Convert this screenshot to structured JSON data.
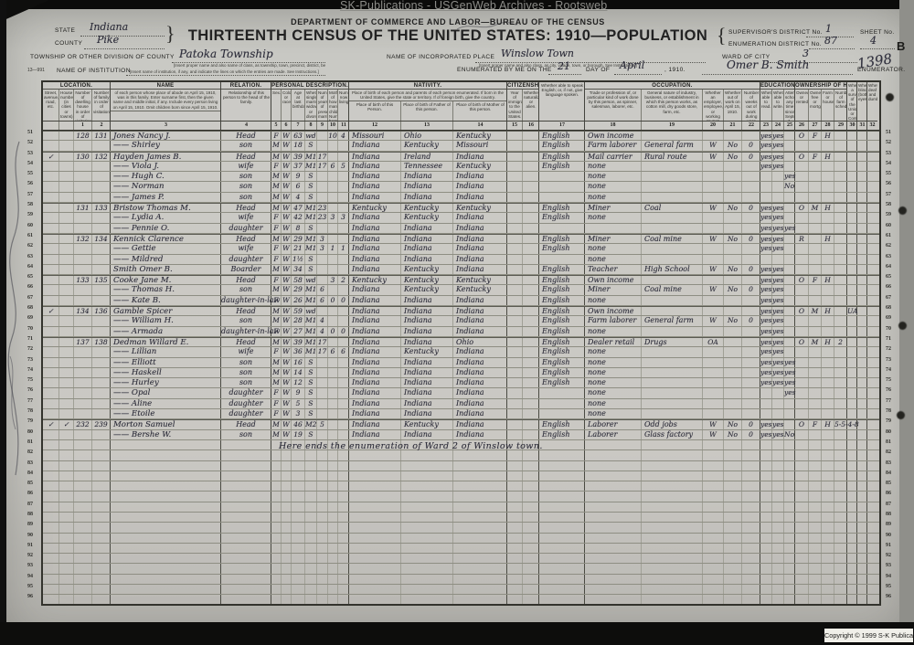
{
  "watermark": "SK-Publications - USGenWeb Archives - Rootsweb",
  "copyright": "Copyright © 1999 S-K Publications",
  "note_row": "Here ends the enumeration of Ward 2 of Winslow town.",
  "form": {
    "form_number": "13—991",
    "dept_line": "DEPARTMENT OF COMMERCE AND LABOR—BUREAU OF THE CENSUS",
    "title": "THIRTEENTH CENSUS OF THE UNITED STATES: 1910—POPULATION",
    "state_label": "STATE",
    "state_value": "Indiana",
    "county_label": "COUNTY",
    "county_value": "Pike",
    "township_label": "TOWNSHIP OR OTHER DIVISION OF COUNTY",
    "township_value": "Patoka Township",
    "township_note": "[Insert proper name and also name of class, as township, town, precinct, district, beat, election district, etc.  See Instructions.]",
    "institution_label": "NAME OF INSTITUTION",
    "institution_note": "[Insert name of institution, if any, and indicate the lines on which the entries are made.  See Instructions.]",
    "place_label": "NAME OF INCORPORATED PLACE",
    "place_value": "Winslow Town",
    "place_note": "[Insert proper name and also class, as city, village, town, or borough.  See Instructions.]",
    "ward_label": "WARD OF CITY",
    "ward_value": "3",
    "supervisor_label": "SUPERVISOR'S DISTRICT No.",
    "supervisor_value": "1",
    "enumeration_label": "ENUMERATION DISTRICT No.",
    "enumeration_value": "87",
    "sheet_label": "SHEET No.",
    "sheet_value": "4",
    "sheet_letter": "B",
    "enumerated_prefix": "ENUMERATED BY ME ON THE",
    "enumerated_day": "21",
    "enumerated_dayof": "DAY OF",
    "enumerated_month": "April",
    "enumerated_year": ", 1910.",
    "enumerator_signature": "Omer B. Smith",
    "enumerator_label": "ENUMERATOR.",
    "stamp_number": "1398"
  },
  "table": {
    "groups": [
      {
        "label": "LOCATION.",
        "cols": [
          0,
          3
        ]
      },
      {
        "label": "NAME",
        "note": "of each person whose place of abode on April 15, 1910, was in this family.  Enter surname first, then the given name and middle initial, if any.  Include every person living on April 15, 1910.  Omit children born since April 15, 1910.",
        "cols": [
          4,
          4
        ]
      },
      {
        "label": "RELATION.",
        "cols": [
          5,
          5
        ]
      },
      {
        "label": "PERSONAL DESCRIPTION.",
        "cols": [
          6,
          12
        ]
      },
      {
        "label": "NATIVITY.",
        "note": "Place of birth of each person and parents of each person enumerated.  If born in the United States, give the state or territory.  If of foreign birth, give the country.",
        "cols": [
          13,
          15
        ]
      },
      {
        "label": "CITIZENSHIP.",
        "cols": [
          16,
          17
        ]
      },
      {
        "label": "",
        "cols": [
          18,
          18
        ]
      },
      {
        "label": "OCCUPATION.",
        "cols": [
          19,
          23
        ]
      },
      {
        "label": "EDUCATION.",
        "cols": [
          24,
          26
        ]
      },
      {
        "label": "OWNERSHIP OF HOME.",
        "cols": [
          27,
          30
        ]
      },
      {
        "label": "",
        "cols": [
          31,
          31
        ]
      },
      {
        "label": "",
        "cols": [
          32,
          32
        ]
      },
      {
        "label": "",
        "cols": [
          33,
          33
        ]
      }
    ],
    "columns": [
      {
        "num": "",
        "label": "Street, avenue, road, etc."
      },
      {
        "num": "",
        "label": "House number (in cities or towns)."
      },
      {
        "num": "1",
        "label": "Number of dwelling house in order of visitation."
      },
      {
        "num": "2",
        "label": "Number of family in order of visitation."
      },
      {
        "num": "3",
        "label": ""
      },
      {
        "num": "4",
        "label": "Relationship of this person to the head of the family."
      },
      {
        "num": "5",
        "label": "Sex."
      },
      {
        "num": "6",
        "label": "Color or race."
      },
      {
        "num": "7",
        "label": "Age at last birthday."
      },
      {
        "num": "8",
        "label": "Whether single, married, widowed, or divorced."
      },
      {
        "num": "9",
        "label": "Number of years of present marriage."
      },
      {
        "num": "10",
        "label": "Mother of how many children: Number born."
      },
      {
        "num": "11",
        "label": "Number now living."
      },
      {
        "num": "12",
        "label": "Place of birth of this Person."
      },
      {
        "num": "13",
        "label": "Place of birth of Father of this person."
      },
      {
        "num": "14",
        "label": "Place of birth of Mother of this person."
      },
      {
        "num": "15",
        "label": "Year of immigration to the United States."
      },
      {
        "num": "16",
        "label": "Whether naturalized or alien."
      },
      {
        "num": "17",
        "label": "Whether able to speak English; or, if not, give language spoken."
      },
      {
        "num": "18",
        "label": "Trade or profession of, or particular kind of work done by this person, as spinner, salesman, laborer, etc."
      },
      {
        "num": "19",
        "label": "General nature of industry, business, or establishment in which this person works, as cotton mill, dry goods store, farm, etc."
      },
      {
        "num": "20",
        "label": "Whether an employer, employee, or working on own account."
      },
      {
        "num": "21",
        "label": "Whether out of work on April 15, 1910."
      },
      {
        "num": "22",
        "label": "Number of weeks out of work during year 1909."
      },
      {
        "num": "23",
        "label": "Whether able to read."
      },
      {
        "num": "24",
        "label": "Whether able to write."
      },
      {
        "num": "25",
        "label": "Attended school any time since September 1, 1909."
      },
      {
        "num": "26",
        "label": "Owned or rented."
      },
      {
        "num": "27",
        "label": "Owned free or mortgaged."
      },
      {
        "num": "28",
        "label": "Farm or house."
      },
      {
        "num": "29",
        "label": "Number of farm schedule."
      },
      {
        "num": "30",
        "label": "Whether a survivor of the Union or Confederate Army or Navy."
      },
      {
        "num": "31",
        "label": "Whether blind (both eyes)."
      },
      {
        "num": "32",
        "label": "Whether deaf and dumb."
      }
    ]
  },
  "line_numbers": {
    "start": 51,
    "count": 46
  },
  "rows": [
    {
      "ln": 51,
      "dw": "128",
      "fm": "131",
      "name": "Jones Nancy J.",
      "rel": "Head",
      "sx": "F",
      "cr": "W",
      "age": "63",
      "ms": "wd",
      "cb": "10",
      "cl": "4",
      "bp": "Missouri",
      "bf": "Ohio",
      "bm": "Kentucky",
      "en": "English",
      "tr": "Own income",
      "rd": "yes",
      "wr": "yes",
      "or": "O",
      "fr": "F",
      "fh": "H"
    },
    {
      "ln": 52,
      "name": "—— Shirley",
      "rel": "son",
      "sx": "M",
      "cr": "W",
      "age": "18",
      "ms": "S",
      "bp": "Indiana",
      "bf": "Kentucky",
      "bm": "Missouri",
      "en": "English",
      "tr": "Farm laborer",
      "ind": "General farm",
      "emp": "W",
      "ow": "No",
      "wk": "0",
      "rd": "yes",
      "wr": "yes"
    },
    {
      "ln": 53,
      "st": "✓",
      "dw": "130",
      "fm": "132",
      "name": "Hayden James B.",
      "rel": "Head",
      "sx": "M",
      "cr": "W",
      "age": "39",
      "ms": "M1",
      "ym": "17",
      "bp": "Indiana",
      "bf": "Ireland",
      "bm": "Indiana",
      "en": "English",
      "tr": "Mail carrier",
      "ind": "Rural route",
      "emp": "W",
      "ow": "No",
      "wk": "0",
      "rd": "yes",
      "wr": "yes",
      "or": "O",
      "fr": "F",
      "fh": "H"
    },
    {
      "ln": 54,
      "name": "—— Viola J.",
      "rel": "wife",
      "sx": "F",
      "cr": "W",
      "age": "37",
      "ms": "M1",
      "ym": "17",
      "cb": "6",
      "cl": "5",
      "bp": "Indiana",
      "bf": "Tennessee",
      "bm": "Kentucky",
      "en": "English",
      "tr": "none",
      "rd": "yes",
      "wr": "yes"
    },
    {
      "ln": 55,
      "name": "—— Hugh C.",
      "rel": "son",
      "sx": "M",
      "cr": "W",
      "age": "9",
      "ms": "S",
      "bp": "Indiana",
      "bf": "Indiana",
      "bm": "Indiana",
      "tr": "none",
      "sch": "yes"
    },
    {
      "ln": 56,
      "name": "—— Norman",
      "rel": "son",
      "sx": "M",
      "cr": "W",
      "age": "6",
      "ms": "S",
      "bp": "Indiana",
      "bf": "Indiana",
      "bm": "Indiana",
      "tr": "none",
      "sch": "No"
    },
    {
      "ln": 57,
      "name": "—— James P.",
      "rel": "son",
      "sx": "M",
      "cr": "W",
      "age": "4",
      "ms": "S",
      "bp": "Indiana",
      "bf": "Indiana",
      "bm": "Indiana",
      "tr": "none"
    },
    {
      "ln": 58,
      "dw": "131",
      "fm": "133",
      "name": "Bristow Thomas M.",
      "rel": "Head",
      "sx": "M",
      "cr": "W",
      "age": "47",
      "ms": "M1",
      "ym": "23",
      "bp": "Kentucky",
      "bf": "Kentucky",
      "bm": "Kentucky",
      "en": "English",
      "tr": "Miner",
      "ind": "Coal",
      "emp": "W",
      "ow": "No",
      "wk": "0",
      "rd": "yes",
      "wr": "yes",
      "or": "O",
      "fr": "M",
      "fh": "H"
    },
    {
      "ln": 59,
      "name": "—— Lydia A.",
      "rel": "wife",
      "sx": "F",
      "cr": "W",
      "age": "42",
      "ms": "M1",
      "ym": "23",
      "cb": "3",
      "cl": "3",
      "bp": "Indiana",
      "bf": "Kentucky",
      "bm": "Indiana",
      "en": "English",
      "tr": "none",
      "rd": "yes",
      "wr": "yes"
    },
    {
      "ln": 60,
      "name": "—— Pennie O.",
      "rel": "daughter",
      "sx": "F",
      "cr": "W",
      "age": "8",
      "ms": "S",
      "bp": "Indiana",
      "bf": "Indiana",
      "bm": "Indiana",
      "rd": "yes",
      "wr": "yes",
      "sch": "yes"
    },
    {
      "ln": 61,
      "dw": "132",
      "fm": "134",
      "name": "Kennick Clarence",
      "rel": "Head",
      "sx": "M",
      "cr": "W",
      "age": "29",
      "ms": "M1",
      "ym": "3",
      "bp": "Indiana",
      "bf": "Indiana",
      "bm": "Indiana",
      "en": "English",
      "tr": "Miner",
      "ind": "Coal mine",
      "emp": "W",
      "ow": "No",
      "wk": "0",
      "rd": "yes",
      "wr": "yes",
      "or": "R",
      "fh": "H"
    },
    {
      "ln": 62,
      "name": "—— Gettie",
      "rel": "wife",
      "sx": "F",
      "cr": "W",
      "age": "21",
      "ms": "M1",
      "ym": "3",
      "cb": "1",
      "cl": "1",
      "bp": "Indiana",
      "bf": "Indiana",
      "bm": "Indiana",
      "en": "English",
      "tr": "none",
      "rd": "yes",
      "wr": "yes"
    },
    {
      "ln": 63,
      "name": "—— Mildred",
      "rel": "daughter",
      "sx": "F",
      "cr": "W",
      "age": "1½",
      "ms": "S",
      "bp": "Indiana",
      "bf": "Indiana",
      "bm": "Indiana",
      "tr": "none"
    },
    {
      "ln": 64,
      "name": "Smith Omer B.",
      "rel": "Boarder",
      "sx": "M",
      "cr": "W",
      "age": "34",
      "ms": "S",
      "bp": "Indiana",
      "bf": "Kentucky",
      "bm": "Indiana",
      "en": "English",
      "tr": "Teacher",
      "ind": "High School",
      "emp": "W",
      "ow": "No",
      "wk": "0",
      "rd": "yes",
      "wr": "yes"
    },
    {
      "ln": 65,
      "dw": "133",
      "fm": "135",
      "name": "Cooke Jane M.",
      "rel": "Head",
      "sx": "F",
      "cr": "W",
      "age": "58",
      "ms": "wd",
      "cb": "3",
      "cl": "2",
      "bp": "Kentucky",
      "bf": "Kentucky",
      "bm": "Kentucky",
      "en": "English",
      "tr": "Own income",
      "rd": "yes",
      "wr": "yes",
      "or": "O",
      "fr": "F",
      "fh": "H"
    },
    {
      "ln": 66,
      "name": "—— Thomas H.",
      "rel": "son",
      "sx": "M",
      "cr": "W",
      "age": "29",
      "ms": "M1",
      "ym": "6",
      "bp": "Indiana",
      "bf": "Kentucky",
      "bm": "Kentucky",
      "en": "English",
      "tr": "Miner",
      "ind": "Coal mine",
      "emp": "W",
      "ow": "No",
      "wk": "0",
      "rd": "yes",
      "wr": "yes"
    },
    {
      "ln": 67,
      "name": "—— Kate B.",
      "rel": "daughter-in-law",
      "sx": "F",
      "cr": "W",
      "age": "26",
      "ms": "M1",
      "ym": "6",
      "cb": "0",
      "cl": "0",
      "bp": "Indiana",
      "bf": "Indiana",
      "bm": "Indiana",
      "en": "English",
      "tr": "none",
      "rd": "yes",
      "wr": "yes"
    },
    {
      "ln": 68,
      "st": "✓",
      "dw": "134",
      "fm": "136",
      "name": "Gamble Spicer",
      "rel": "Head",
      "sx": "M",
      "cr": "W",
      "age": "59",
      "ms": "wd",
      "bp": "Indiana",
      "bf": "Indiana",
      "bm": "Indiana",
      "en": "English",
      "tr": "Own income",
      "rd": "yes",
      "wr": "yes",
      "or": "O",
      "fr": "M",
      "fh": "H",
      "vet": "UA"
    },
    {
      "ln": 69,
      "name": "—— William H.",
      "rel": "son",
      "sx": "M",
      "cr": "W",
      "age": "28",
      "ms": "M1",
      "ym": "4",
      "bp": "Indiana",
      "bf": "Indiana",
      "bm": "Indiana",
      "en": "English",
      "tr": "Farm laborer",
      "ind": "General farm",
      "emp": "W",
      "ow": "No",
      "wk": "0",
      "rd": "yes",
      "wr": "yes"
    },
    {
      "ln": 70,
      "name": "—— Armada",
      "rel": "daughter-in-law",
      "sx": "F",
      "cr": "W",
      "age": "27",
      "ms": "M1",
      "ym": "4",
      "cb": "0",
      "cl": "0",
      "bp": "Indiana",
      "bf": "Indiana",
      "bm": "Indiana",
      "en": "English",
      "tr": "none",
      "rd": "yes",
      "wr": "yes"
    },
    {
      "ln": 71,
      "dw": "137",
      "fm": "138",
      "name": "Dedman Willard E.",
      "rel": "Head",
      "sx": "M",
      "cr": "W",
      "age": "39",
      "ms": "M1",
      "ym": "17",
      "bp": "Indiana",
      "bf": "Indiana",
      "bm": "Ohio",
      "en": "English",
      "tr": "Dealer retail",
      "ind": "Drugs",
      "emp": "OA",
      "rd": "yes",
      "wr": "yes",
      "or": "O",
      "fr": "M",
      "fh": "H",
      "fs": "2"
    },
    {
      "ln": 72,
      "name": "—— Lillian",
      "rel": "wife",
      "sx": "F",
      "cr": "W",
      "age": "36",
      "ms": "M1",
      "ym": "17",
      "cb": "6",
      "cl": "6",
      "bp": "Indiana",
      "bf": "Kentucky",
      "bm": "Indiana",
      "en": "English",
      "tr": "none",
      "rd": "yes",
      "wr": "yes"
    },
    {
      "ln": 73,
      "name": "—— Elliott",
      "rel": "son",
      "sx": "M",
      "cr": "W",
      "age": "16",
      "ms": "S",
      "bp": "Indiana",
      "bf": "Indiana",
      "bm": "Indiana",
      "en": "English",
      "tr": "none",
      "rd": "yes",
      "wr": "yes",
      "sch": "yes"
    },
    {
      "ln": 74,
      "name": "—— Haskell",
      "rel": "son",
      "sx": "M",
      "cr": "W",
      "age": "14",
      "ms": "S",
      "bp": "Indiana",
      "bf": "Indiana",
      "bm": "Indiana",
      "en": "English",
      "tr": "none",
      "rd": "yes",
      "wr": "yes",
      "sch": "yes"
    },
    {
      "ln": 75,
      "name": "—— Hurley",
      "rel": "son",
      "sx": "M",
      "cr": "W",
      "age": "12",
      "ms": "S",
      "bp": "Indiana",
      "bf": "Indiana",
      "bm": "Indiana",
      "en": "English",
      "tr": "none",
      "rd": "yes",
      "wr": "yes",
      "sch": "yes"
    },
    {
      "ln": 76,
      "name": "—— Opal",
      "rel": "daughter",
      "sx": "F",
      "cr": "W",
      "age": "9",
      "ms": "S",
      "bp": "Indiana",
      "bf": "Indiana",
      "bm": "Indiana",
      "tr": "none",
      "sch": "yes"
    },
    {
      "ln": 77,
      "name": "—— Aline",
      "rel": "daughter",
      "sx": "F",
      "cr": "W",
      "age": "5",
      "ms": "S",
      "bp": "Indiana",
      "bf": "Indiana",
      "bm": "Indiana",
      "tr": "none"
    },
    {
      "ln": 78,
      "name": "—— Etoile",
      "rel": "daughter",
      "sx": "F",
      "cr": "W",
      "age": "3",
      "ms": "S",
      "bp": "Indiana",
      "bf": "Indiana",
      "bm": "Indiana",
      "tr": "none"
    },
    {
      "ln": 79,
      "st": "✓",
      "hn": "✓",
      "dw": "232",
      "fm": "239",
      "name": "Morton Samuel",
      "rel": "Head",
      "sx": "M",
      "cr": "W",
      "age": "46",
      "ms": "M2",
      "ym": "5",
      "bp": "Indiana",
      "bf": "Kentucky",
      "bm": "Indiana",
      "en": "English",
      "tr": "Laborer",
      "ind": "Odd jobs",
      "emp": "W",
      "ow": "No",
      "wk": "0",
      "rd": "yes",
      "wr": "yes",
      "or": "O",
      "fr": "F",
      "fh": "H",
      "fs": "5-5-4-8"
    },
    {
      "ln": 80,
      "name": "—— Bershe W.",
      "rel": "son",
      "sx": "M",
      "cr": "W",
      "age": "19",
      "ms": "S",
      "bp": "Indiana",
      "bf": "Indiana",
      "bm": "Indiana",
      "en": "English",
      "tr": "Laborer",
      "ind": "Glass factory",
      "emp": "W",
      "ow": "No",
      "wk": "0",
      "rd": "yes",
      "wr": "yes",
      "sch": "No"
    }
  ]
}
